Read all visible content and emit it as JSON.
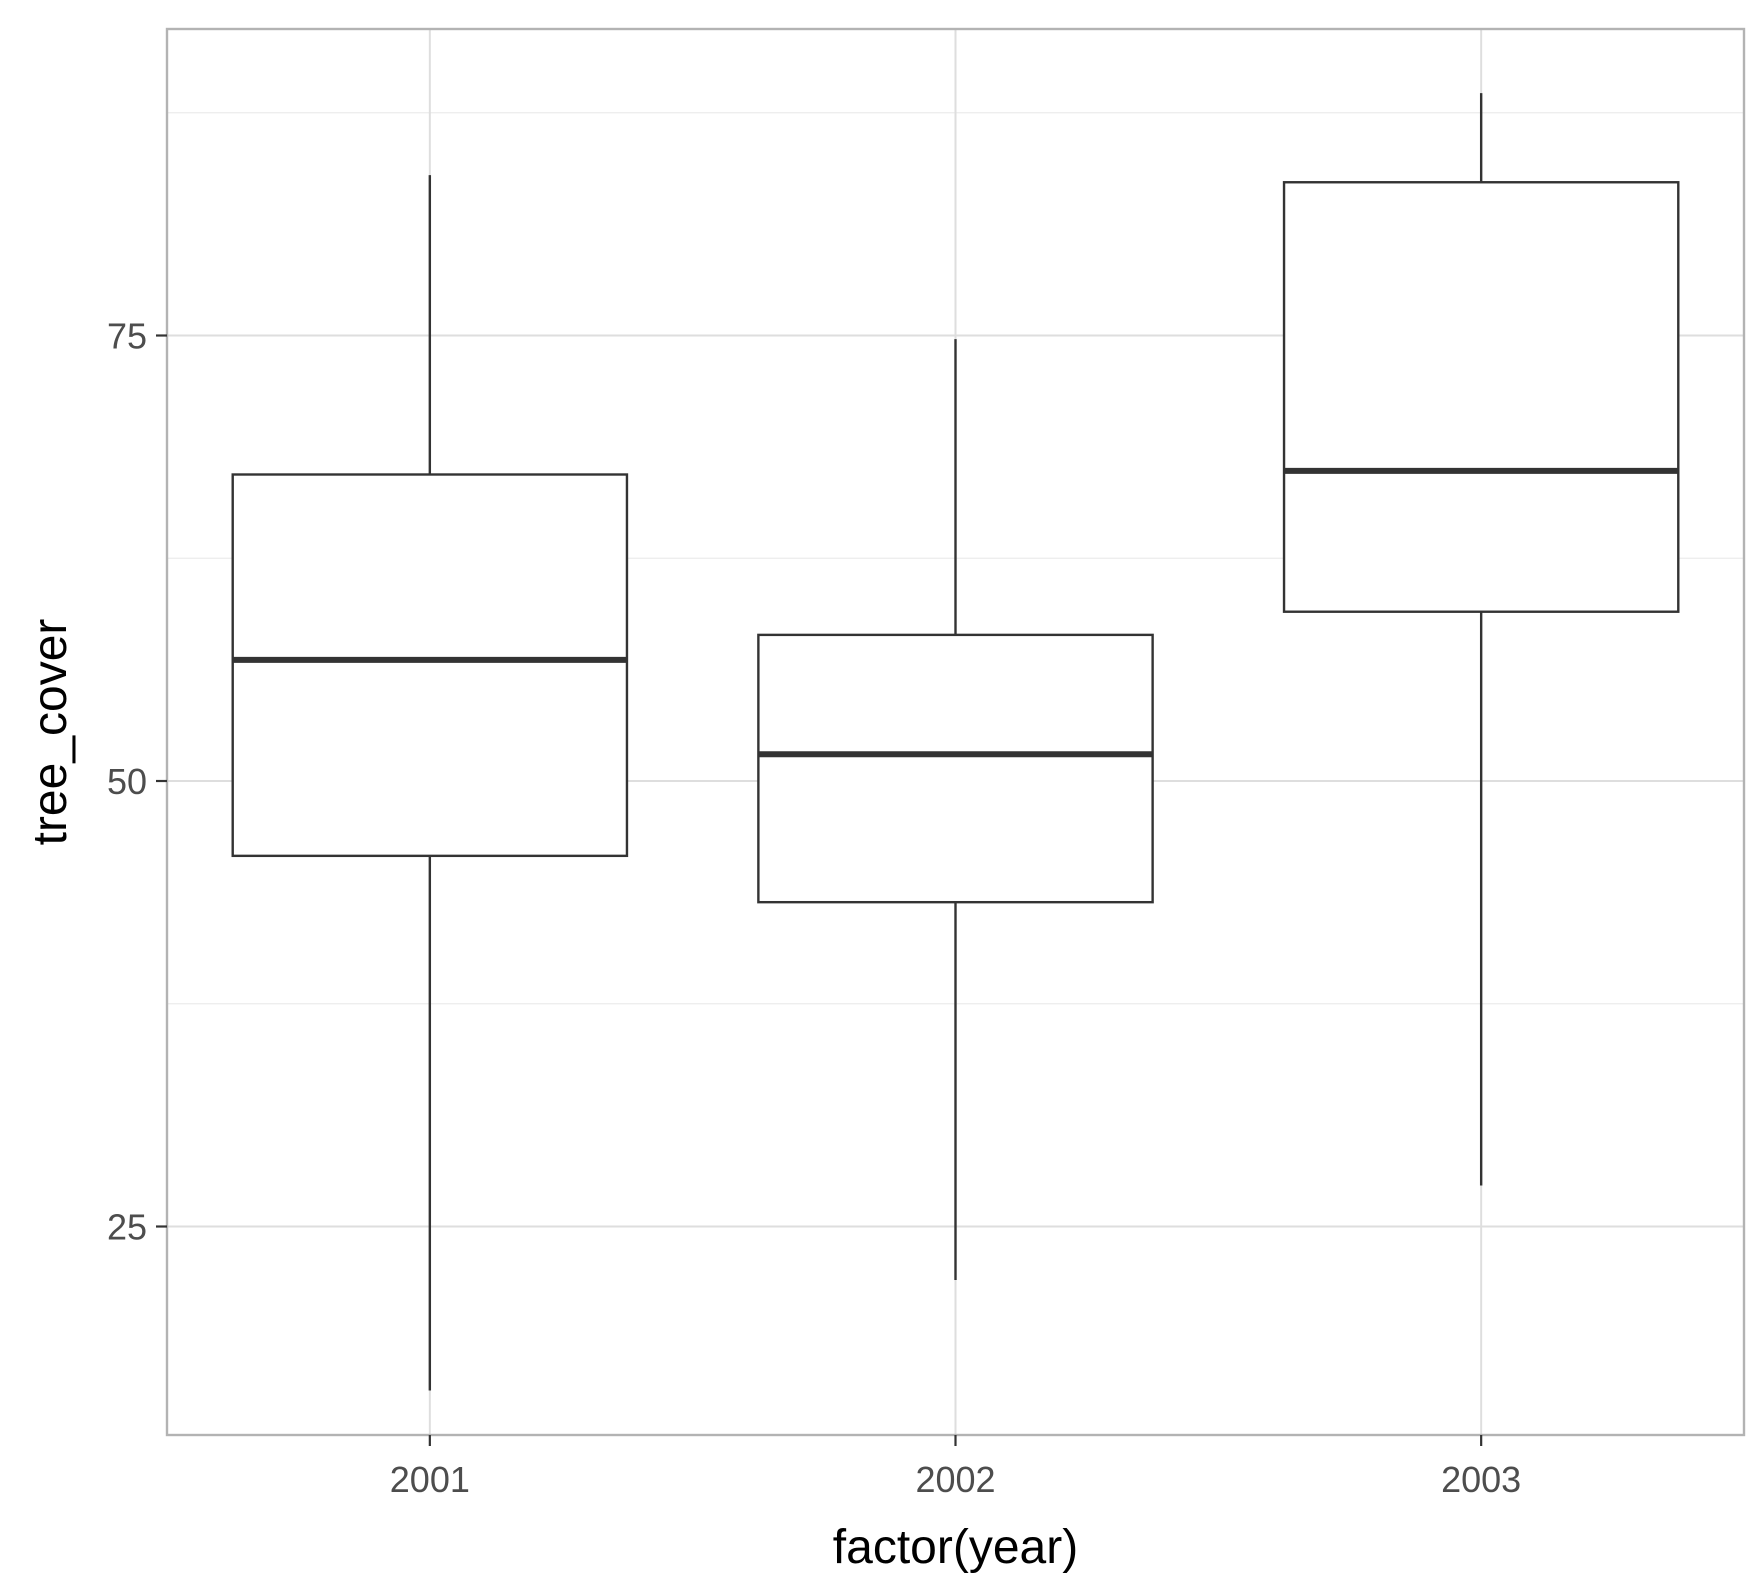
{
  "chart_data": {
    "type": "boxplot",
    "xlabel": "factor(year)",
    "ylabel": "tree_cover",
    "categories": [
      "2001",
      "2002",
      "2003"
    ],
    "boxes": [
      {
        "category": "2001",
        "whisker_low": 15.8,
        "q1": 45.8,
        "median": 56.8,
        "q3": 67.2,
        "whisker_high": 84.0
      },
      {
        "category": "2002",
        "whisker_low": 22.0,
        "q1": 43.2,
        "median": 51.5,
        "q3": 58.2,
        "whisker_high": 74.8
      },
      {
        "category": "2003",
        "whisker_low": 27.3,
        "q1": 59.5,
        "median": 67.4,
        "q3": 83.6,
        "whisker_high": 88.6
      }
    ],
    "ylim": [
      13.3,
      92.2
    ],
    "yticks": [
      25,
      50,
      75
    ],
    "ytick_labels": [
      "25",
      "50",
      "75"
    ],
    "grid": true,
    "colors": {
      "box_stroke": "#333333",
      "grid": "#ebebeb",
      "panel_border": "#b3b3b3",
      "tick_text": "#4d4d4d"
    }
  }
}
